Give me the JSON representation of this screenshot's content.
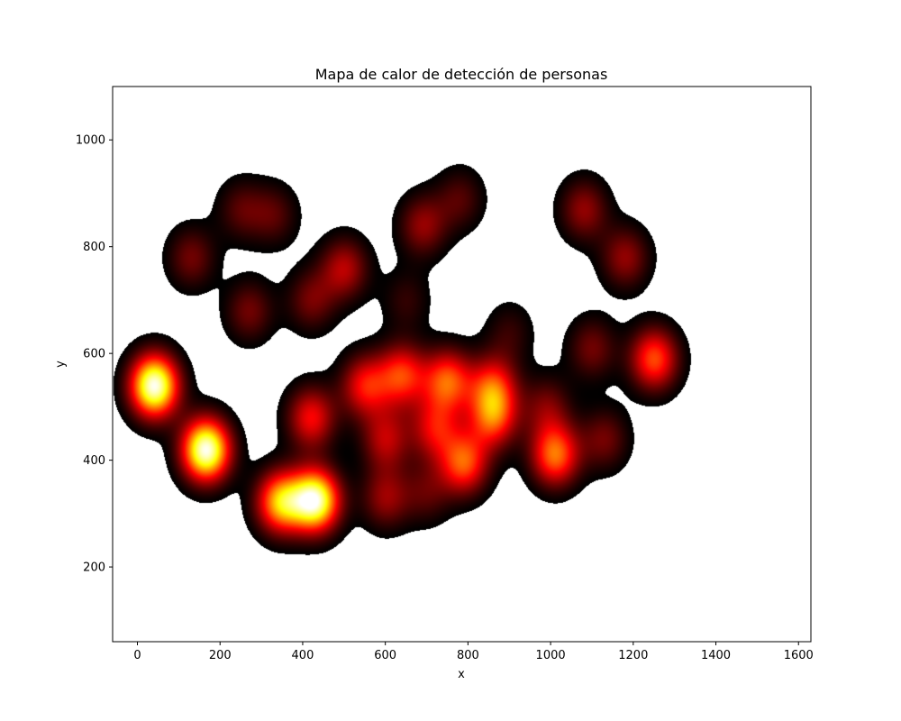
{
  "chart_data": {
    "type": "heatmap",
    "title": "Mapa de calor de detección de personas",
    "xlabel": "x",
    "ylabel": "y",
    "xlim": [
      -60,
      1630
    ],
    "ylim": [
      60,
      1100
    ],
    "x_ticks": [
      0,
      200,
      400,
      600,
      800,
      1000,
      1200,
      1400,
      1600
    ],
    "y_ticks": [
      200,
      400,
      600,
      800,
      1000
    ],
    "grid": false,
    "colormap": "hot",
    "background_color": "#ffffff",
    "hotspots": [
      {
        "x": 40,
        "y": 540,
        "intensity": 1.0
      },
      {
        "x": 165,
        "y": 420,
        "intensity": 1.0
      },
      {
        "x": 430,
        "y": 325,
        "intensity": 0.95
      },
      {
        "x": 345,
        "y": 322,
        "intensity": 0.7
      },
      {
        "x": 130,
        "y": 780,
        "intensity": 0.25
      },
      {
        "x": 250,
        "y": 870,
        "intensity": 0.2
      },
      {
        "x": 330,
        "y": 860,
        "intensity": 0.2
      },
      {
        "x": 500,
        "y": 760,
        "intensity": 0.35
      },
      {
        "x": 420,
        "y": 700,
        "intensity": 0.25
      },
      {
        "x": 270,
        "y": 680,
        "intensity": 0.25
      },
      {
        "x": 690,
        "y": 840,
        "intensity": 0.3
      },
      {
        "x": 780,
        "y": 890,
        "intensity": 0.2
      },
      {
        "x": 1080,
        "y": 870,
        "intensity": 0.3
      },
      {
        "x": 1180,
        "y": 780,
        "intensity": 0.3
      },
      {
        "x": 1250,
        "y": 590,
        "intensity": 0.55
      },
      {
        "x": 1100,
        "y": 610,
        "intensity": 0.25
      },
      {
        "x": 650,
        "y": 700,
        "intensity": 0.15
      },
      {
        "x": 900,
        "y": 640,
        "intensity": 0.15
      },
      {
        "x": 420,
        "y": 480,
        "intensity": 0.45
      },
      {
        "x": 550,
        "y": 540,
        "intensity": 0.45
      },
      {
        "x": 640,
        "y": 560,
        "intensity": 0.5
      },
      {
        "x": 750,
        "y": 550,
        "intensity": 0.55
      },
      {
        "x": 860,
        "y": 540,
        "intensity": 0.45
      },
      {
        "x": 860,
        "y": 480,
        "intensity": 0.5
      },
      {
        "x": 720,
        "y": 460,
        "intensity": 0.4
      },
      {
        "x": 600,
        "y": 440,
        "intensity": 0.35
      },
      {
        "x": 790,
        "y": 395,
        "intensity": 0.55
      },
      {
        "x": 1010,
        "y": 410,
        "intensity": 0.6
      },
      {
        "x": 1130,
        "y": 440,
        "intensity": 0.25
      },
      {
        "x": 990,
        "y": 500,
        "intensity": 0.25
      },
      {
        "x": 600,
        "y": 330,
        "intensity": 0.3
      },
      {
        "x": 700,
        "y": 340,
        "intensity": 0.2
      }
    ]
  }
}
